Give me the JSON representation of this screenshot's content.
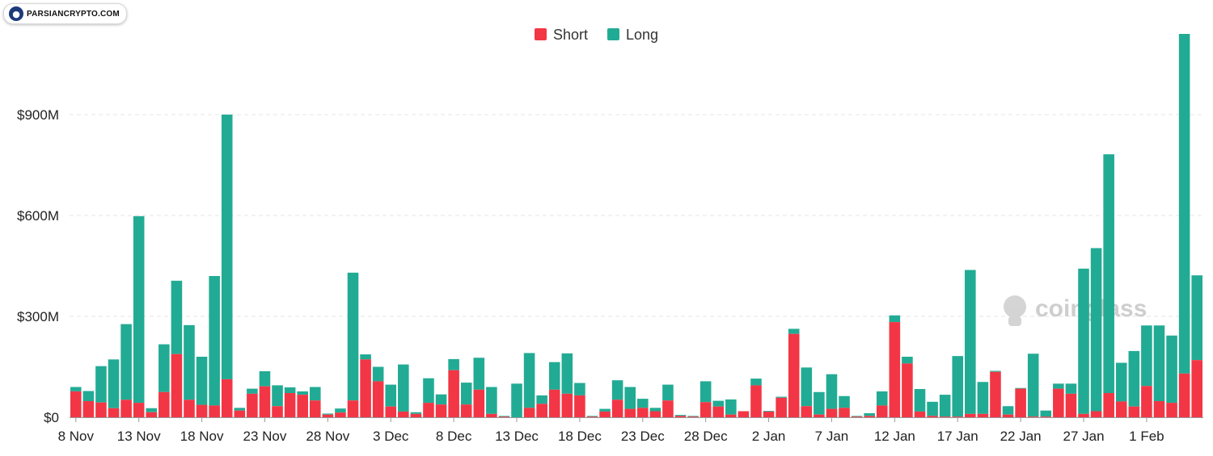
{
  "watermark": {
    "badge_text": "PARSIANCRYPTO.COM",
    "brand_text": "coinglass"
  },
  "colors": {
    "short": "#f23645",
    "long": "#22ab94",
    "grid": "#e6e6e6"
  },
  "chart_data": {
    "type": "bar",
    "stacked": true,
    "title": "",
    "xlabel": "",
    "ylabel": "",
    "ylim": [
      0,
      1150
    ],
    "y_unit": "$M",
    "y_ticks": [
      {
        "value": 0,
        "label": "$0"
      },
      {
        "value": 300,
        "label": "$300M"
      },
      {
        "value": 600,
        "label": "$600M"
      },
      {
        "value": 900,
        "label": "$900M"
      }
    ],
    "x_tick_labels": [
      {
        "index": 0,
        "label": "8 Nov"
      },
      {
        "index": 5,
        "label": "13 Nov"
      },
      {
        "index": 10,
        "label": "18 Nov"
      },
      {
        "index": 15,
        "label": "23 Nov"
      },
      {
        "index": 20,
        "label": "28 Nov"
      },
      {
        "index": 25,
        "label": "3 Dec"
      },
      {
        "index": 30,
        "label": "8 Dec"
      },
      {
        "index": 35,
        "label": "13 Dec"
      },
      {
        "index": 40,
        "label": "18 Dec"
      },
      {
        "index": 45,
        "label": "23 Dec"
      },
      {
        "index": 50,
        "label": "28 Dec"
      },
      {
        "index": 55,
        "label": "2 Jan"
      },
      {
        "index": 60,
        "label": "7 Jan"
      },
      {
        "index": 65,
        "label": "12 Jan"
      },
      {
        "index": 70,
        "label": "17 Jan"
      },
      {
        "index": 75,
        "label": "22 Jan"
      },
      {
        "index": 80,
        "label": "27 Jan"
      },
      {
        "index": 85,
        "label": "1 Feb"
      }
    ],
    "legend": {
      "position": "top-center"
    },
    "grid": true,
    "series": [
      {
        "name": "Short",
        "color": "#f23645",
        "values": [
          77,
          48,
          44,
          27,
          52,
          43,
          15,
          75,
          188,
          52,
          37,
          35,
          113,
          20,
          70,
          92,
          33,
          72,
          67,
          50,
          8,
          14,
          50,
          172,
          107,
          32,
          17,
          10,
          43,
          38,
          140,
          38,
          82,
          10,
          2,
          0,
          28,
          40,
          82,
          70,
          65,
          2,
          17,
          52,
          25,
          28,
          18,
          50,
          4,
          2,
          45,
          32,
          8,
          18,
          95,
          17,
          58,
          248,
          33,
          8,
          25,
          28,
          2,
          4,
          35,
          283,
          160,
          17,
          4,
          2,
          2,
          10,
          10,
          135,
          8,
          85,
          2,
          2,
          85,
          70,
          10,
          18,
          72,
          47,
          32,
          93,
          48,
          43,
          130,
          170
        ]
      },
      {
        "name": "Long",
        "color": "#22ab94",
        "values": [
          13,
          30,
          108,
          145,
          225,
          555,
          12,
          142,
          218,
          222,
          143,
          385,
          787,
          8,
          15,
          45,
          62,
          17,
          10,
          40,
          3,
          12,
          380,
          15,
          43,
          65,
          140,
          5,
          73,
          30,
          33,
          65,
          95,
          80,
          2,
          100,
          163,
          25,
          82,
          120,
          37,
          2,
          8,
          58,
          65,
          27,
          10,
          47,
          3,
          2,
          62,
          17,
          45,
          0,
          20,
          2,
          3,
          15,
          115,
          67,
          103,
          35,
          2,
          8,
          42,
          20,
          20,
          67,
          42,
          65,
          180,
          428,
          95,
          3,
          25,
          2,
          187,
          18,
          15,
          30,
          432,
          485,
          710,
          115,
          165,
          180,
          225,
          200,
          1010,
          252
        ]
      }
    ]
  }
}
